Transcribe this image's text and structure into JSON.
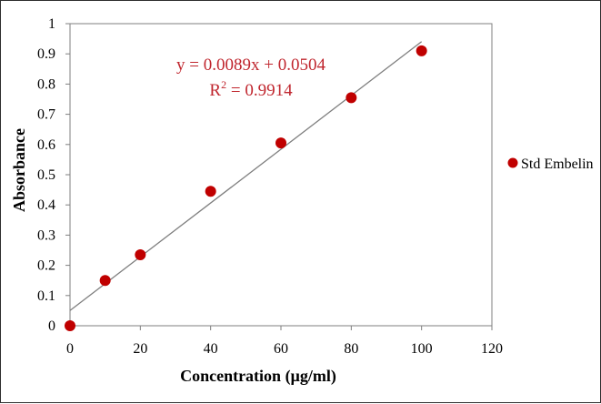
{
  "chart_data": {
    "type": "scatter",
    "xlabel": "Concentration (µg/ml)",
    "ylabel": "Absorbance",
    "xlim": [
      0,
      120
    ],
    "ylim": [
      0,
      1
    ],
    "xticks": [
      "0",
      "20",
      "40",
      "60",
      "80",
      "100",
      "120"
    ],
    "yticks": [
      "0",
      "0.1",
      "0.2",
      "0.3",
      "0.4",
      "0.5",
      "0.6",
      "0.7",
      "0.8",
      "0.9",
      "1"
    ],
    "grid": false,
    "legend_position": "right",
    "series": [
      {
        "name": "Std Embelin",
        "color": "#c00000",
        "x": [
          0,
          10,
          20,
          40,
          60,
          80,
          100
        ],
        "y": [
          0.0,
          0.15,
          0.235,
          0.445,
          0.605,
          0.755,
          0.91
        ]
      }
    ],
    "trendline": {
      "type": "linear",
      "slope": 0.0089,
      "intercept": 0.0504,
      "x_range": [
        0,
        100
      ],
      "color": "#7f7f7f"
    },
    "annotations": {
      "equation": "y = 0.0089x + 0.0504",
      "r2_prefix": "R",
      "r2_sup": "2",
      "r2_value": " = 0.9914",
      "color": "#c0262e"
    }
  }
}
